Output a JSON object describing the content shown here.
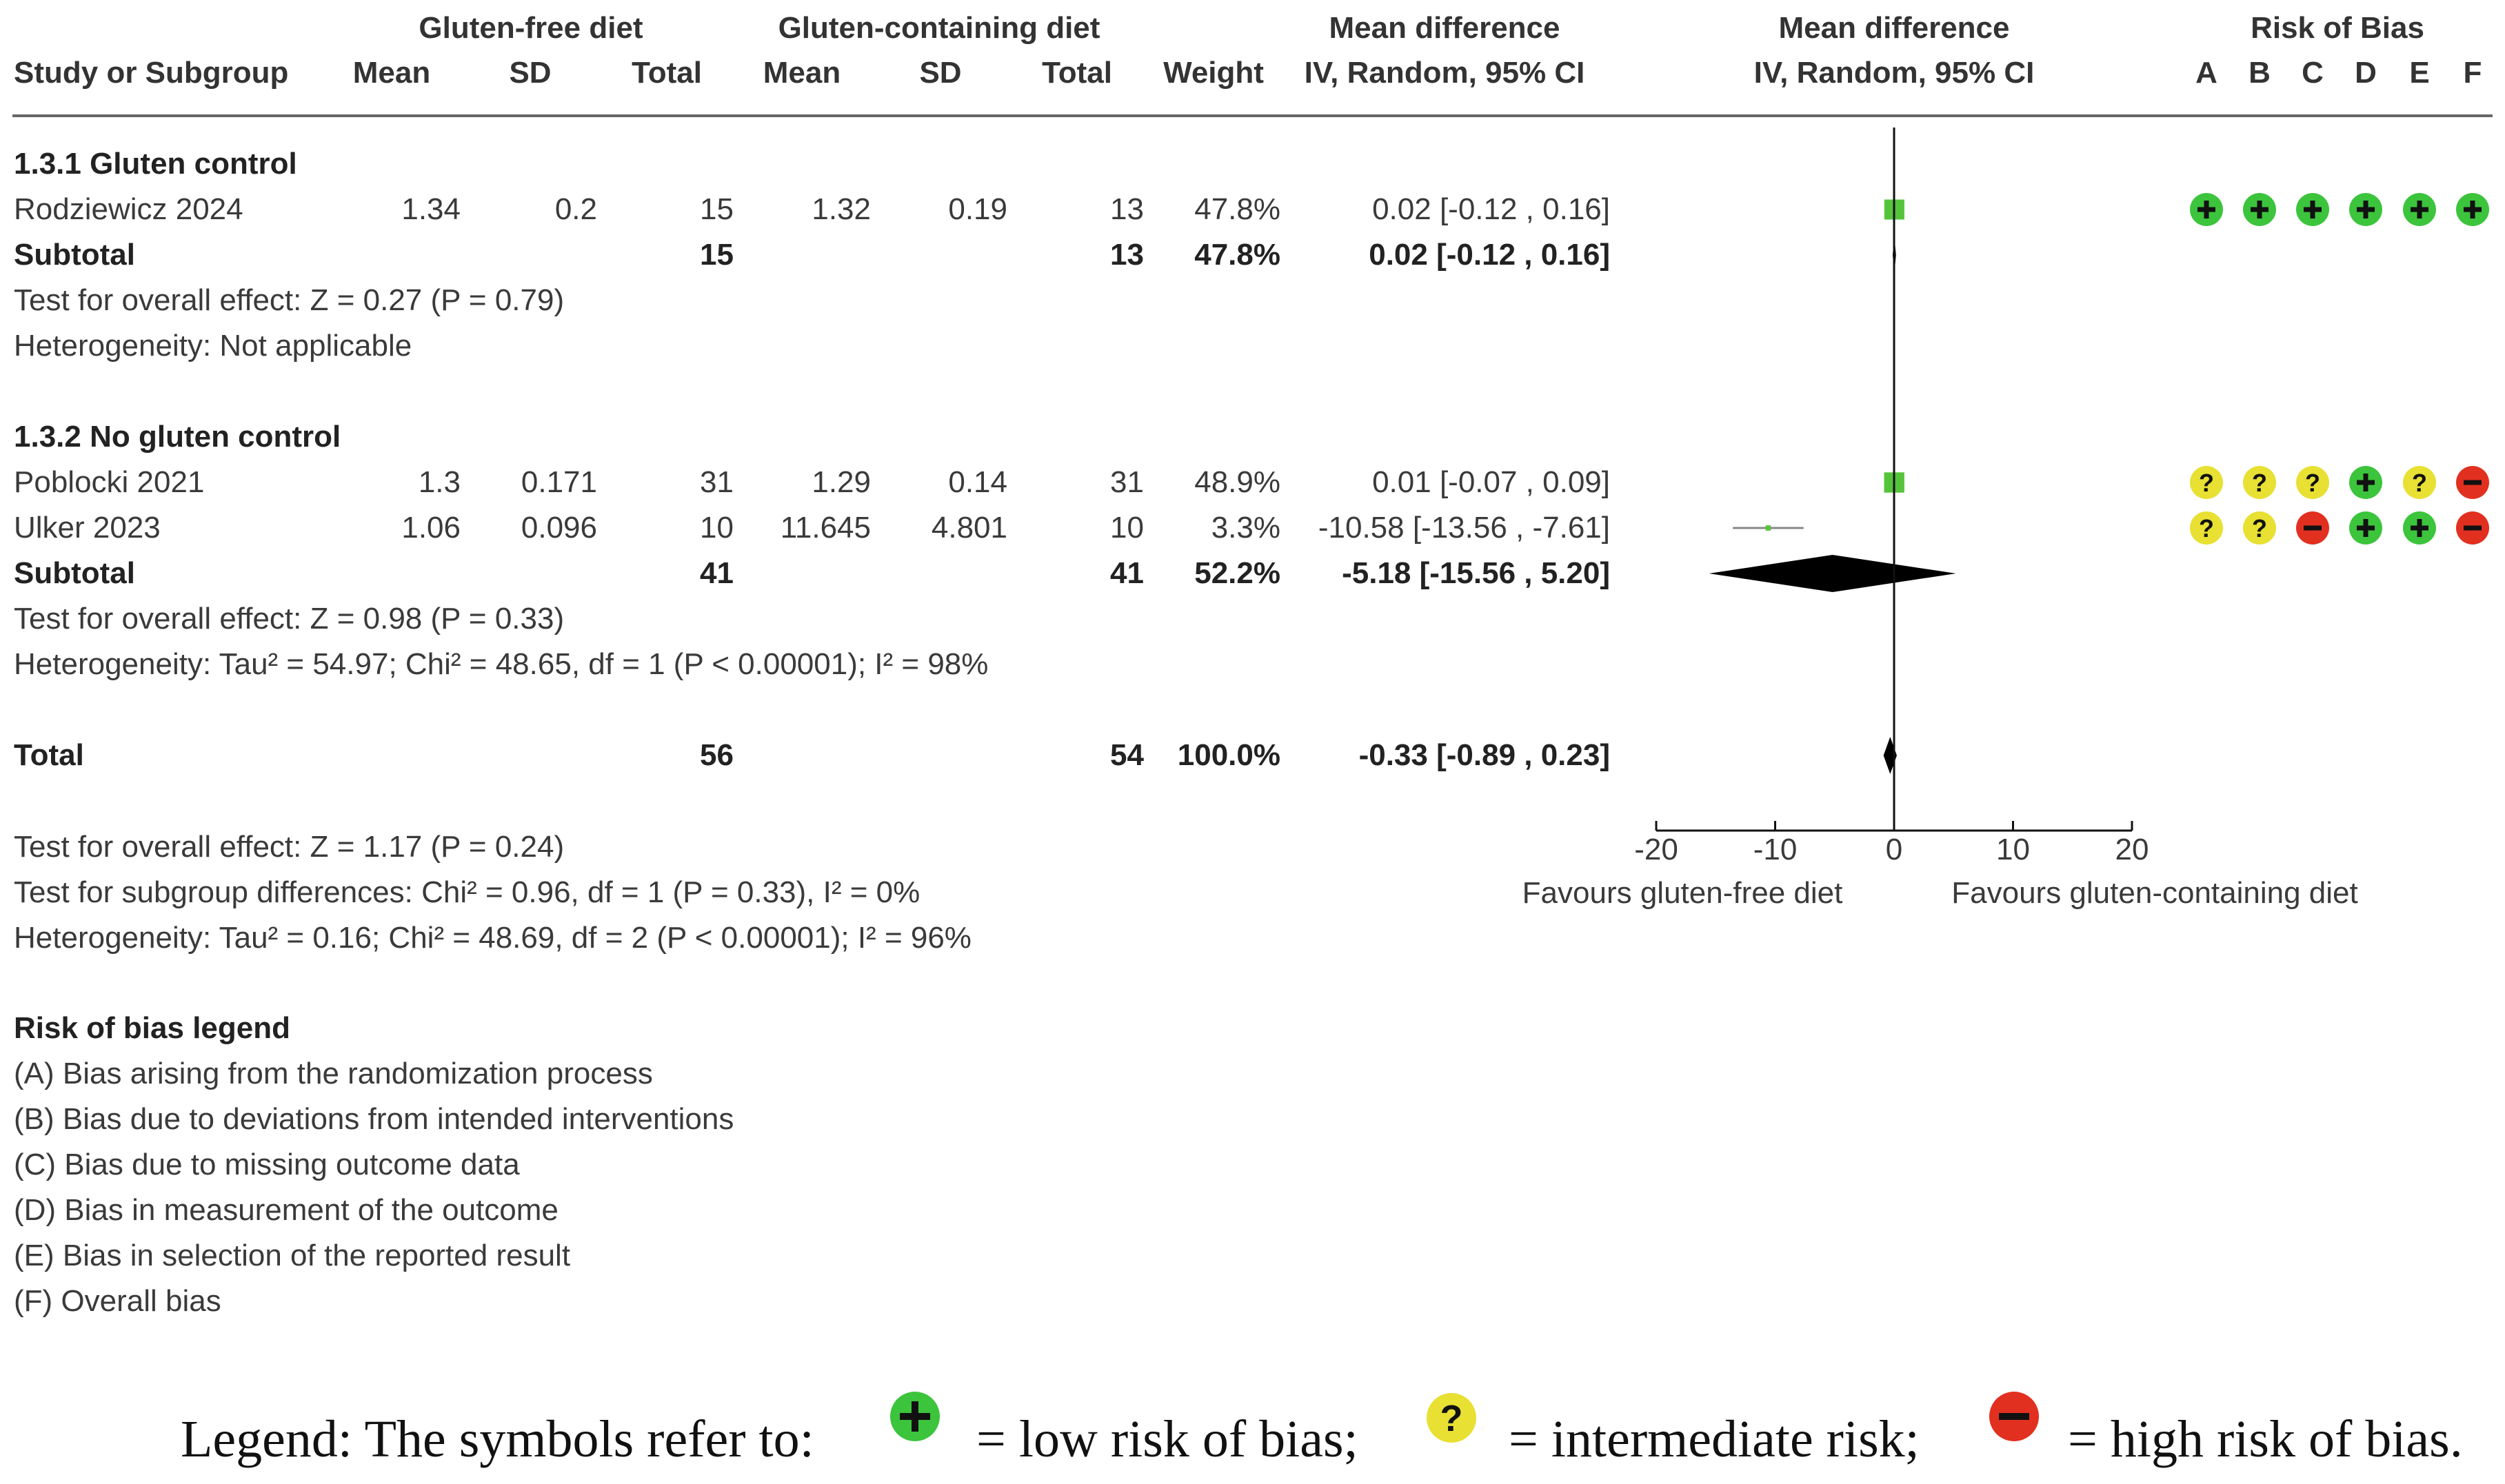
{
  "colors": {
    "square": "#55c43a",
    "diamond": "#000000",
    "low": "#3cc43c",
    "intermediate": "#e8e032",
    "high": "#e23020",
    "rule": "#666666"
  },
  "headers": {
    "group_experimental": "Gluten-free diet",
    "group_control": "Gluten-containing diet",
    "mean_diff_title": "Mean difference",
    "mean_diff_method": "IV, Random, 95% CI",
    "plot_title": "Mean difference",
    "plot_method": "IV, Random, 95% CI",
    "rob_title": "Risk of Bias",
    "study": "Study or Subgroup",
    "mean_e": "Mean",
    "sd_e": "SD",
    "total_e": "Total",
    "mean_c": "Mean",
    "sd_c": "SD",
    "total_c": "Total",
    "weight": "Weight",
    "rob_letters": [
      "A",
      "B",
      "C",
      "D",
      "E",
      "F"
    ]
  },
  "chart_data": {
    "type": "forest",
    "measure": "Mean difference, IV, Random, 95% CI",
    "xlim": [
      -20,
      20
    ],
    "xticks": [
      -20,
      -10,
      0,
      10,
      20
    ],
    "xtick_labels": [
      "-20",
      "-10",
      "0",
      "10",
      "20"
    ],
    "favours_left": "Favours gluten-free diet",
    "favours_right": "Favours gluten-containing diet",
    "subgroups": [
      {
        "title": "1.3.1 Gluten control",
        "studies": [
          {
            "name": "Rodziewicz 2024",
            "mean_e": "1.34",
            "sd_e": "0.2",
            "total_e": "15",
            "mean_c": "1.32",
            "sd_c": "0.19",
            "total_c": "13",
            "weight": "47.8%",
            "ci_text": "0.02 [-0.12 , 0.16]",
            "md": 0.02,
            "lo": -0.12,
            "hi": 0.16,
            "w": 47.8,
            "rob": [
              "low",
              "low",
              "low",
              "low",
              "low",
              "low"
            ]
          }
        ],
        "subtotal": {
          "label": "Subtotal",
          "total_e": "15",
          "total_c": "13",
          "weight": "47.8%",
          "ci_text": "0.02 [-0.12 , 0.16]",
          "md": 0.02,
          "lo": -0.12,
          "hi": 0.16
        },
        "overall_effect": "Test for overall effect: Z = 0.27 (P = 0.79)",
        "heterogeneity": "Heterogeneity: Not applicable"
      },
      {
        "title": "1.3.2 No gluten control",
        "studies": [
          {
            "name": "Poblocki 2021",
            "mean_e": "1.3",
            "sd_e": "0.171",
            "total_e": "31",
            "mean_c": "1.29",
            "sd_c": "0.14",
            "total_c": "31",
            "weight": "48.9%",
            "ci_text": "0.01 [-0.07 , 0.09]",
            "md": 0.01,
            "lo": -0.07,
            "hi": 0.09,
            "w": 48.9,
            "rob": [
              "intermediate",
              "intermediate",
              "intermediate",
              "low",
              "intermediate",
              "high"
            ]
          },
          {
            "name": "Ulker 2023",
            "mean_e": "1.06",
            "sd_e": "0.096",
            "total_e": "10",
            "mean_c": "11.645",
            "sd_c": "4.801",
            "total_c": "10",
            "weight": "3.3%",
            "ci_text": "-10.58 [-13.56 , -7.61]",
            "md": -10.58,
            "lo": -13.56,
            "hi": -7.61,
            "w": 3.3,
            "rob": [
              "intermediate",
              "intermediate",
              "high",
              "low",
              "low",
              "high"
            ]
          }
        ],
        "subtotal": {
          "label": "Subtotal",
          "total_e": "41",
          "total_c": "41",
          "weight": "52.2%",
          "ci_text": "-5.18 [-15.56 , 5.20]",
          "md": -5.18,
          "lo": -15.56,
          "hi": 5.2
        },
        "overall_effect": "Test for overall effect: Z = 0.98 (P = 0.33)",
        "heterogeneity": "Heterogeneity: Tau² = 54.97; Chi² = 48.65, df = 1 (P < 0.00001); I² = 98%"
      }
    ],
    "total": {
      "label": "Total",
      "total_e": "56",
      "total_c": "54",
      "weight": "100.0%",
      "ci_text": "-0.33 [-0.89 , 0.23]",
      "md": -0.33,
      "lo": -0.89,
      "hi": 0.23
    },
    "tests": [
      "Test for overall effect: Z = 1.17 (P = 0.24)",
      "Test for subgroup differences: Chi² = 0.96, df = 1 (P = 0.33), I² = 0%",
      "Heterogeneity: Tau² = 0.16; Chi² = 48.69, df = 2 (P < 0.00001); I² = 96%"
    ]
  },
  "rob_legend": {
    "title": "Risk of bias legend",
    "items": [
      "(A) Bias arising from the randomization process",
      "(B) Bias due to deviations from intended interventions",
      "(C) Bias due to missing outcome data",
      "(D) Bias in measurement of the outcome",
      "(E) Bias in selection of the reported result",
      "(F) Overall bias"
    ]
  },
  "symbol_legend": {
    "prefix": "Legend: The symbols refer to:",
    "low_text": "= low risk of bias;",
    "intermediate_text": "= intermediate risk;",
    "high_text": "= high risk of bias."
  }
}
